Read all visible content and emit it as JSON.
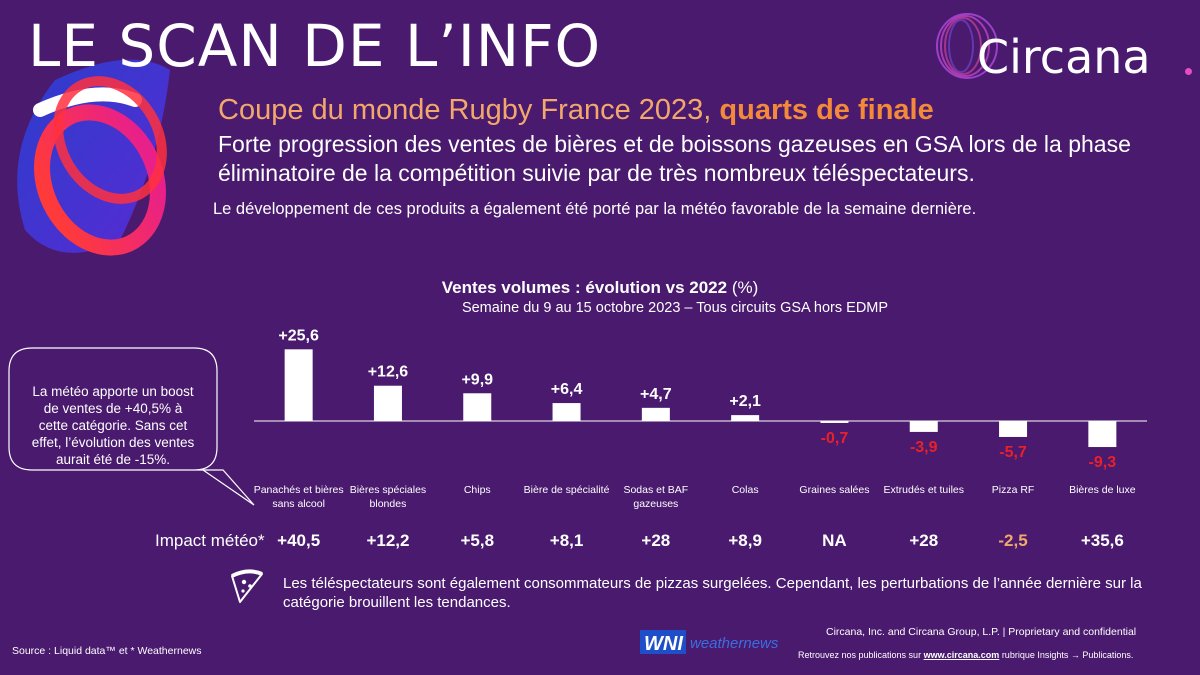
{
  "header": {
    "title": "LE SCAN DE L’INFO",
    "brand": "Circana"
  },
  "intro": {
    "subtitle_main": "Coupe du monde Rugby France 2023,",
    "subtitle_bold": "quarts de finale",
    "headline": "Forte progression des ventes de bières et de boissons gazeuses en GSA lors de la phase éliminatoire de la compétition suivie par de très nombreux téléspectateurs.",
    "note": "Le développement de ces produits a également été porté par la météo favorable de la semaine dernière."
  },
  "bubble": {
    "text": "La météo apporte un boost de ventes de +40,5% à cette catégorie. Sans cet effet, l’évolution des ventes aurait été de -15%."
  },
  "impact": {
    "label": "Impact météo*",
    "values": [
      "+40,5",
      "+12,2",
      "+5,8",
      "+8,1",
      "+28",
      "+8,9",
      "NA",
      "+28",
      "-2,5",
      "+35,6"
    ],
    "colors": [
      "#ffffff",
      "#ffffff",
      "#ffffff",
      "#ffffff",
      "#ffffff",
      "#ffffff",
      "#ffffff",
      "#ffffff",
      "#f2a86b",
      "#ffffff"
    ]
  },
  "chart_data": {
    "type": "bar",
    "title_bold": "Ventes volumes : évolution  vs 2022",
    "title_unit": "(%)",
    "subtitle": "Semaine du 9 au 15 octobre 2023 – Tous circuits GSA hors EDMP",
    "categories": [
      "Panachés et bières sans alcool",
      "Bières spéciales blondes",
      "Chips",
      "Bière de spécialité",
      "Sodas et BAF gazeuses",
      "Colas",
      "Graines salées",
      "Extrudés et tuiles",
      "Pizza RF",
      "Bières de luxe"
    ],
    "category_lines": [
      [
        "Panachés et bières",
        "sans alcool"
      ],
      [
        "Bières spéciales",
        "blondes"
      ],
      [
        "Chips"
      ],
      [
        "Bière de spécialité"
      ],
      [
        "Sodas et BAF",
        "gazeuses"
      ],
      [
        "Colas"
      ],
      [
        "Graines salées"
      ],
      [
        "Extrudés et tuiles"
      ],
      [
        "Pizza RF"
      ],
      [
        "Bières de luxe"
      ]
    ],
    "values": [
      25.6,
      12.6,
      9.9,
      6.4,
      4.7,
      2.1,
      -0.7,
      -3.9,
      -5.7,
      -9.3
    ],
    "labels": [
      "+25,6",
      "+12,6",
      "+9,9",
      "+6,4",
      "+4,7",
      "+2,1",
      "-0,7",
      "-3,9",
      "-5,7",
      "-9,3"
    ],
    "positive_label_color": "#ffffff",
    "negative_label_color": "#e8202a",
    "bar_color": "#ffffff",
    "ylim": [
      -9.3,
      25.6
    ]
  },
  "footer": {
    "pizza_note": "Les téléspectateurs sont également consommateurs de pizzas surgelées. Cependant, les perturbations de l’année dernière sur la catégorie brouillent les tendances.",
    "source": "Source : Liquid data™ et * Weathernews",
    "wni_logo": "WNI",
    "wni_text": "weathernews",
    "copyright": "Circana, Inc. and Circana Group, L.P. |  Proprietary and confidential",
    "retrouvez_pre": "Retrouvez nos publications sur",
    "retrouvez_link": "www.circana.com",
    "retrouvez_post": "rubrique Insights → Publications."
  },
  "colors": {
    "background": "#4a1a6e",
    "accent_orange": "#f28a3a",
    "negative_red": "#e8202a"
  }
}
